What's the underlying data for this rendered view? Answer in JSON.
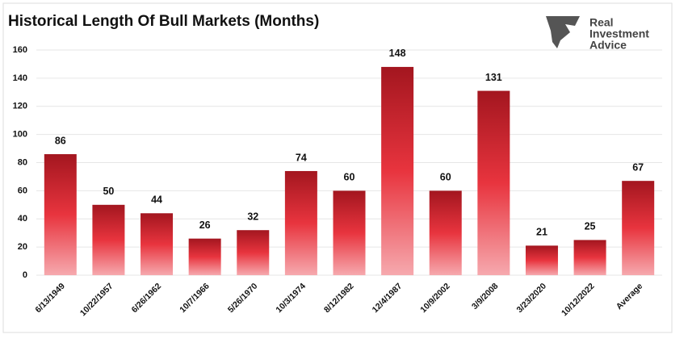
{
  "chart_data": {
    "type": "bar",
    "title": "Historical Length Of Bull Markets (Months)",
    "logo": [
      "Real",
      "Investment",
      "Advice"
    ],
    "categories": [
      "6/13/1949",
      "10/22/1957",
      "6/26/1962",
      "10/7/1966",
      "5/26/1970",
      "10/3/1974",
      "8/12/1982",
      "12/4/1987",
      "10/9/2002",
      "3/9/2008",
      "3/23/2020",
      "10/12/2022",
      "Average"
    ],
    "values": [
      86,
      50,
      44,
      26,
      32,
      74,
      60,
      148,
      60,
      131,
      21,
      25,
      67
    ],
    "color": "#d42a33",
    "ylim": [
      0,
      160
    ],
    "yticks": [
      0,
      20,
      40,
      60,
      80,
      100,
      120,
      140,
      160
    ],
    "grid": true
  }
}
